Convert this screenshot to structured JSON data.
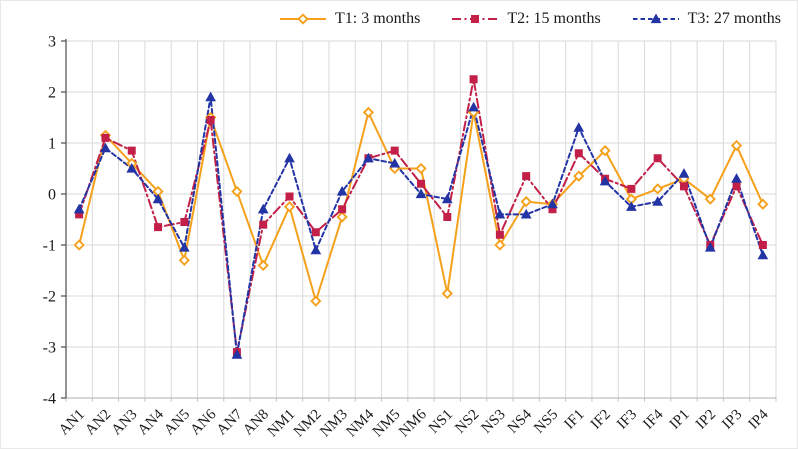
{
  "chart_data": {
    "type": "line",
    "title": "",
    "xlabel": "",
    "ylabel": "",
    "ylim": [
      -4,
      3
    ],
    "yticks": [
      3,
      2,
      1,
      0,
      -1,
      -2,
      -3,
      -4
    ],
    "grid": "both",
    "legend_position": "top",
    "categories": [
      "AN1",
      "AN2",
      "AN3",
      "AN4",
      "AN5",
      "AN6",
      "AN7",
      "AN8",
      "NM1",
      "NM2",
      "NM3",
      "NM4",
      "NM5",
      "NM6",
      "NS1",
      "NS2",
      "NS3",
      "NS4",
      "NS5",
      "IF1",
      "IF2",
      "IF3",
      "IF4",
      "IP1",
      "IP2",
      "IP3",
      "IP4"
    ],
    "series": [
      {
        "name": "T1: 3 months",
        "color": "#F5A11C",
        "line_style": "solid",
        "marker": "diamond",
        "values": [
          -1.0,
          1.15,
          0.6,
          0.05,
          -1.3,
          1.5,
          0.05,
          -1.4,
          -0.25,
          -2.1,
          -0.45,
          1.6,
          0.5,
          0.5,
          -1.95,
          1.6,
          -1.0,
          -0.15,
          -0.2,
          0.35,
          0.85,
          -0.1,
          0.1,
          0.3,
          -0.1,
          0.95,
          -0.2
        ]
      },
      {
        "name": "T2: 15 months",
        "color": "#C22048",
        "line_style": "dash-dot",
        "marker": "square",
        "values": [
          -0.4,
          1.1,
          0.85,
          -0.65,
          -0.55,
          1.45,
          -3.1,
          -0.6,
          -0.05,
          -0.75,
          -0.3,
          0.7,
          0.85,
          0.2,
          -0.45,
          2.25,
          -0.8,
          0.35,
          -0.3,
          0.8,
          0.3,
          0.1,
          0.7,
          0.15,
          -1.0,
          0.15,
          -1.0
        ]
      },
      {
        "name": "T3: 27 months",
        "color": "#2334A4",
        "line_style": "dashed",
        "marker": "triangle",
        "values": [
          -0.3,
          0.9,
          0.5,
          -0.1,
          -1.05,
          1.9,
          -3.15,
          -0.3,
          0.7,
          -1.1,
          0.05,
          0.7,
          0.6,
          0.0,
          -0.1,
          1.7,
          -0.4,
          -0.4,
          -0.2,
          1.3,
          0.25,
          -0.25,
          -0.15,
          0.4,
          -1.05,
          0.3,
          -1.2
        ]
      }
    ],
    "colors": {
      "gridline": "#D9D9D9",
      "y_axis": "#595959",
      "x_axis": "#BFBFBF",
      "tick_text": "#1a1a1a"
    }
  }
}
